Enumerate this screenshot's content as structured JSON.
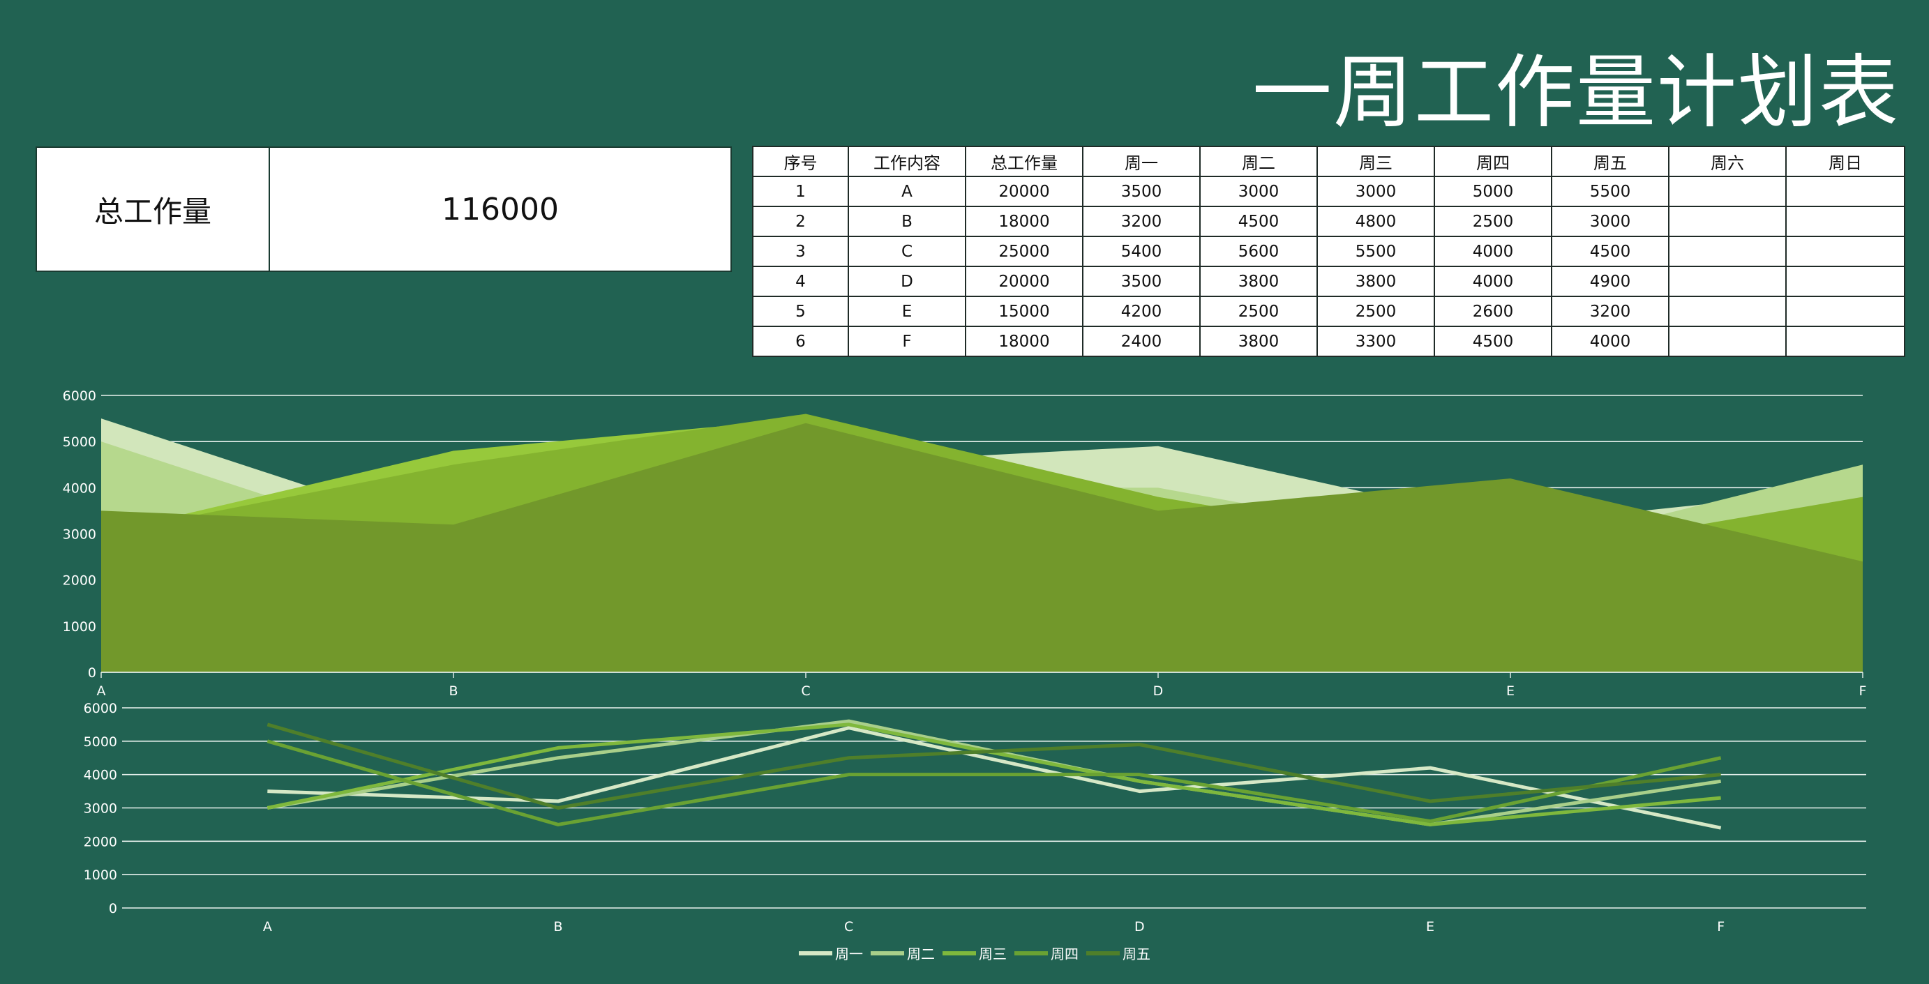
{
  "title": "一周工作量计划表",
  "summary": {
    "label": "总工作量",
    "value": "116000"
  },
  "table": {
    "headers": [
      "序号",
      "工作内容",
      "总工作量",
      "周一",
      "周二",
      "周三",
      "周四",
      "周五",
      "周六",
      "周日"
    ],
    "rows": [
      [
        "1",
        "A",
        "20000",
        "3500",
        "3000",
        "3000",
        "5000",
        "5500",
        "",
        ""
      ],
      [
        "2",
        "B",
        "18000",
        "3200",
        "4500",
        "4800",
        "2500",
        "3000",
        "",
        ""
      ],
      [
        "3",
        "C",
        "25000",
        "5400",
        "5600",
        "5500",
        "4000",
        "4500",
        "",
        ""
      ],
      [
        "4",
        "D",
        "20000",
        "3500",
        "3800",
        "3800",
        "4000",
        "4900",
        "",
        ""
      ],
      [
        "5",
        "E",
        "15000",
        "4200",
        "2500",
        "2500",
        "2600",
        "3200",
        "",
        ""
      ],
      [
        "6",
        "F",
        "18000",
        "2400",
        "3800",
        "3300",
        "4500",
        "4000",
        "",
        ""
      ]
    ]
  },
  "chart_data": [
    {
      "type": "area",
      "categories": [
        "A",
        "B",
        "C",
        "D",
        "E",
        "F"
      ],
      "ylim": [
        0,
        6000
      ],
      "yticks": [
        "0",
        "1000",
        "2000",
        "3000",
        "4000",
        "5000",
        "6000"
      ],
      "grid": true,
      "legend": "none",
      "series": [
        {
          "name": "周五",
          "color": "#d2e6bb",
          "values": [
            5500,
            3000,
            4500,
            4900,
            3200,
            4000
          ]
        },
        {
          "name": "周四",
          "color": "#b6d88d",
          "values": [
            5000,
            2500,
            4000,
            4000,
            2600,
            4500
          ]
        },
        {
          "name": "周三",
          "color": "#97c93b",
          "values": [
            3000,
            4800,
            5500,
            3800,
            2500,
            3300
          ]
        },
        {
          "name": "周二",
          "color": "#84b32f",
          "values": [
            3000,
            4500,
            5600,
            3800,
            2500,
            3800
          ]
        },
        {
          "name": "周一",
          "color": "#72982b",
          "values": [
            3500,
            3200,
            5400,
            3500,
            4200,
            2400
          ]
        }
      ]
    },
    {
      "type": "line",
      "categories": [
        "A",
        "B",
        "C",
        "D",
        "E",
        "F"
      ],
      "ylim": [
        0,
        6000
      ],
      "yticks": [
        "0",
        "1000",
        "2000",
        "3000",
        "4000",
        "5000",
        "6000"
      ],
      "grid": true,
      "legend": "bottom",
      "series": [
        {
          "name": "周一",
          "color": "#d6e8c6",
          "values": [
            3500,
            3200,
            5400,
            3500,
            4200,
            2400
          ]
        },
        {
          "name": "周二",
          "color": "#a9cf8a",
          "values": [
            3000,
            4500,
            5600,
            3800,
            2500,
            3800
          ]
        },
        {
          "name": "周三",
          "color": "#7fb83d",
          "values": [
            3000,
            4800,
            5500,
            3800,
            2500,
            3300
          ]
        },
        {
          "name": "周四",
          "color": "#6aa233",
          "values": [
            5000,
            2500,
            4000,
            4000,
            2600,
            4500
          ]
        },
        {
          "name": "周五",
          "color": "#4f7f2a",
          "values": [
            5500,
            3000,
            4500,
            4900,
            3200,
            4000
          ]
        }
      ]
    }
  ]
}
